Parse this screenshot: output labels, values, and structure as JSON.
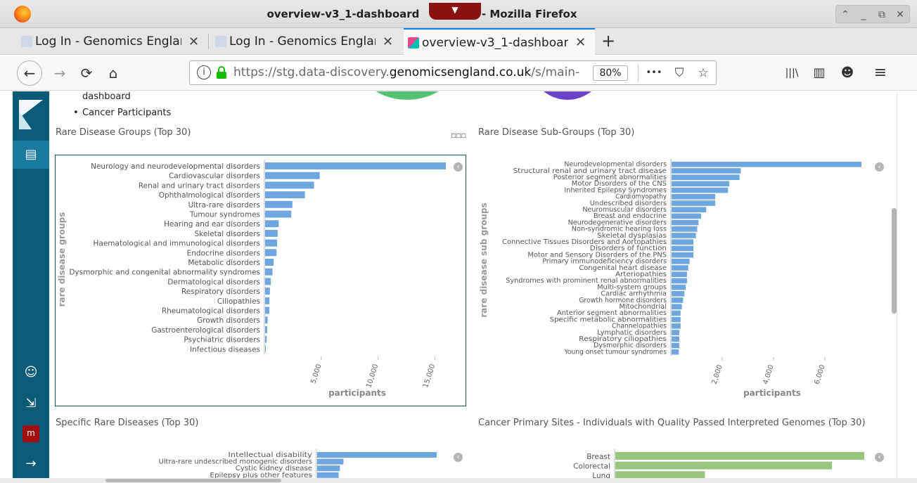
{
  "window": {
    "title": "overview-v3_1-dashboard",
    "title_suffix": "- Mozilla Firefox",
    "dropdown_glyph": "▼",
    "controls": [
      "⌃",
      "_",
      "⧉",
      "✕"
    ]
  },
  "tabs": [
    {
      "label": "Log In - Genomics Englan",
      "close": "✕"
    },
    {
      "label": "Log In - Genomics Englan",
      "close": "✕"
    },
    {
      "label": "overview-v3_1-dashboard",
      "close": "✕"
    }
  ],
  "newtab": "+",
  "nav": {
    "back": "←",
    "forward": "→",
    "reload": "⟳",
    "home": "⌂",
    "url_prefix": "https://stg.data-discovery.",
    "url_domain": "genomicsengland.co.uk",
    "url_suffix": "/s/main-",
    "zoom": "80%",
    "more": "•••",
    "pocket": "⛉",
    "star": "☆",
    "library": "|||\\",
    "sidebar_btn": "▥",
    "account": "☻",
    "menu": "≡",
    "info": "i"
  },
  "sidebar": {
    "dashboard_icon": "▤",
    "user_icon": "☺",
    "logout_icon": "⇲",
    "avatar": "m",
    "collapse": "→"
  },
  "markdown": {
    "line1": "dashboard",
    "line2": "Cancer Participants",
    "bullet": "•"
  },
  "colors": {
    "bar_blue": "#6ea6df",
    "bar_green": "#98c67e",
    "sidebar": "#0b5a77",
    "donut_green": "#55c172",
    "donut_purple": "#6b42c8"
  },
  "panels": {
    "p1_title": "Rare Disease Groups (Top 30)",
    "p1_menu": "▫▫▫",
    "p2_title": "Rare Disease Sub-Groups (Top 30)",
    "p3_title": "Specific Rare Diseases (Top 30)",
    "p4_title": "Cancer Primary Sites - Individuals with Quality Passed Interpreted Genomes (Top 30)",
    "collapse_glyph": "‹"
  },
  "chart_data": [
    {
      "type": "bar",
      "orientation": "horizontal",
      "title": "Rare Disease Groups (Top 30)",
      "ylabel": "rare disease groups",
      "xlabel": "participants",
      "xticks": [
        5000,
        10000,
        15000
      ],
      "xtick_labels": [
        "5,000",
        "10,000",
        "15,000"
      ],
      "xlim": [
        0,
        16500
      ],
      "categories": [
        "Neurology and neurodevelopmental disorders",
        "Cardiovascular disorders",
        "Renal and urinary tract disorders",
        "Ophthalmological disorders",
        "Ultra-rare disorders",
        "Tumour syndromes",
        "Hearing and ear disorders",
        "Skeletal disorders",
        "Haematological and immunological disorders",
        "Endocrine disorders",
        "Metabolic disorders",
        "Dysmorphic and congenital abnormality syndromes",
        "Dermatological disorders",
        "Respiratory disorders",
        "Ciliopathies",
        "Rheumatological disorders",
        "Growth disorders",
        "Gastroenterological disorders",
        "Psychiatric disorders",
        "Infectious diseases"
      ],
      "values": [
        15900,
        4800,
        4300,
        3500,
        2400,
        2300,
        1200,
        1100,
        1050,
        1000,
        750,
        650,
        500,
        420,
        380,
        370,
        220,
        180,
        140,
        40
      ]
    },
    {
      "type": "bar",
      "orientation": "horizontal",
      "title": "Rare Disease Sub-Groups (Top 30)",
      "ylabel": "rare disease sub groups",
      "xlabel": "participants",
      "xticks": [
        2000,
        4000,
        6000
      ],
      "xtick_labels": [
        "2,000",
        "4,000",
        "6,000"
      ],
      "xlim": [
        0,
        7700
      ],
      "categories": [
        "Neurodevelopmental disorders",
        "Structural renal and urinary tract disease",
        "Posterior segment abnormalities",
        "Motor Disorders of the CNS",
        "Inherited Epilepsy Syndromes",
        "Cardiomyopathy",
        "Undescribed disorders",
        "Neuromuscular disorders",
        "Breast and endocrine",
        "Neurodegenerative disorders",
        "Non-syndromic hearing loss",
        "Skeletal dysplasias",
        "Connective Tissues Disorders and Aortopathies",
        "Disorders of function",
        "Motor and Sensory Disorders of the PNS",
        "Primary immunodeficiency disorders",
        "Congenital heart disease",
        "Arteriopathies",
        "Syndromes with prominent renal abnormalities",
        "Multi-system groups",
        "Cardiac arrhythmia",
        "Growth hormone disorders",
        "Mitochondrial",
        "Anterior segment abnormalities",
        "Specific metabolic abnormalities",
        "Channelopathies",
        "Lymphatic disorders",
        "Respiratory ciliopathies",
        "Dysmorphic disorders",
        "Young onset tumour syndromes"
      ],
      "values": [
        7400,
        2700,
        2650,
        2250,
        2200,
        1700,
        1700,
        1350,
        1150,
        1050,
        1000,
        950,
        850,
        850,
        850,
        700,
        650,
        600,
        600,
        550,
        500,
        450,
        400,
        350,
        350,
        350,
        300,
        300,
        300,
        280
      ]
    },
    {
      "type": "bar",
      "orientation": "horizontal",
      "title": "Specific Rare Diseases (Top 30)",
      "categories": [
        "Intellectual disability",
        "Ultra-rare undescribed monogenic disorders",
        "Cystic kidney disease",
        "Epilepsy plus other features"
      ],
      "values": [
        100,
        22,
        19,
        18
      ]
    },
    {
      "type": "bar",
      "orientation": "horizontal",
      "title": "Cancer Primary Sites - Individuals with Quality Passed Interpreted Genomes (Top 30)",
      "categories": [
        "Breast",
        "Colorectal",
        "Lung"
      ],
      "values": [
        100,
        87,
        36
      ]
    }
  ]
}
